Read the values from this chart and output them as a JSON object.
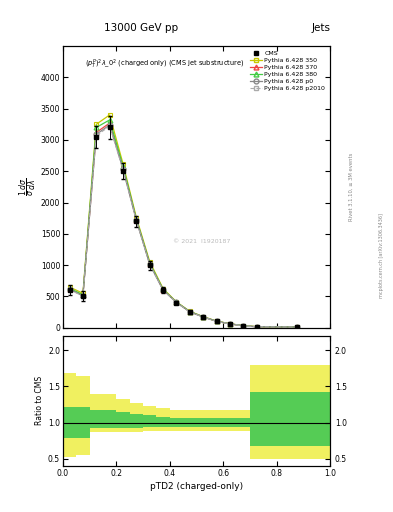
{
  "title_top": "13000 GeV pp",
  "title_right": "Jets",
  "annotation": "$(p_T^p)^2\\lambda\\_0^2$ (charged only) (CMS jet substructure)",
  "rivet_label": "Rivet 3.1.10, ≥ 3M events",
  "arxiv_label": "mcplots.cern.ch [arXiv:1306.3436]",
  "watermark": "© 2021  I1920187",
  "xlabel": "pTD2 (charged-only)",
  "ylabel_ratio": "Ratio to CMS",
  "xlim": [
    0,
    1
  ],
  "ylim_main": [
    0,
    4500
  ],
  "ylim_ratio": [
    0.4,
    2.2
  ],
  "yticks_main": [
    0,
    500,
    1000,
    1500,
    2000,
    2500,
    3000,
    3500,
    4000
  ],
  "yticks_ratio": [
    0.5,
    1.0,
    1.5,
    2.0
  ],
  "x_bins": [
    0.0,
    0.05,
    0.1,
    0.15,
    0.2,
    0.25,
    0.3,
    0.35,
    0.4,
    0.45,
    0.5,
    0.55,
    0.6,
    0.65,
    0.7,
    0.75,
    1.0
  ],
  "cms_values": [
    600,
    500,
    3050,
    3200,
    2500,
    1700,
    1000,
    600,
    400,
    250,
    170,
    100,
    60,
    30,
    15,
    10
  ],
  "cms_errors": [
    80,
    80,
    180,
    180,
    130,
    90,
    70,
    45,
    28,
    18,
    13,
    9,
    7,
    4,
    3,
    2
  ],
  "py350_values": [
    650,
    550,
    3250,
    3400,
    2620,
    1760,
    1055,
    625,
    412,
    262,
    176,
    106,
    63,
    33,
    17,
    12
  ],
  "py370_values": [
    620,
    520,
    3120,
    3270,
    2560,
    1725,
    1025,
    607,
    406,
    256,
    173,
    103,
    61,
    31,
    15.5,
    10.5
  ],
  "py380_values": [
    630,
    525,
    3200,
    3320,
    2580,
    1735,
    1032,
    612,
    408,
    258,
    174,
    104,
    62,
    32,
    16,
    11
  ],
  "pyp0_values": [
    615,
    508,
    3090,
    3240,
    2535,
    1715,
    1012,
    602,
    403,
    253,
    171,
    102,
    61,
    31,
    15.5,
    10.5
  ],
  "pyp2010_values": [
    608,
    504,
    3070,
    3220,
    2525,
    1708,
    1007,
    599,
    401,
    251,
    170,
    101,
    60,
    30,
    15,
    10
  ],
  "color_350": "#c8c800",
  "color_370": "#ee4444",
  "color_380": "#44cc44",
  "color_p0": "#888888",
  "color_p2010": "#aaaaaa",
  "ratio_yellow_lo": [
    0.52,
    0.55,
    0.87,
    0.87,
    0.87,
    0.87,
    0.88,
    0.88,
    0.88,
    0.88,
    0.88,
    0.88,
    0.88,
    0.88,
    0.5,
    0.5
  ],
  "ratio_yellow_hi": [
    1.68,
    1.65,
    1.4,
    1.4,
    1.33,
    1.27,
    1.23,
    1.2,
    1.17,
    1.17,
    1.17,
    1.17,
    1.17,
    1.17,
    1.8,
    1.8
  ],
  "ratio_green_lo": [
    0.78,
    0.78,
    0.93,
    0.93,
    0.93,
    0.93,
    0.94,
    0.94,
    0.94,
    0.94,
    0.94,
    0.94,
    0.94,
    0.94,
    0.68,
    0.68
  ],
  "ratio_green_hi": [
    1.22,
    1.22,
    1.18,
    1.18,
    1.14,
    1.12,
    1.1,
    1.08,
    1.06,
    1.06,
    1.06,
    1.06,
    1.06,
    1.06,
    1.42,
    1.42
  ]
}
